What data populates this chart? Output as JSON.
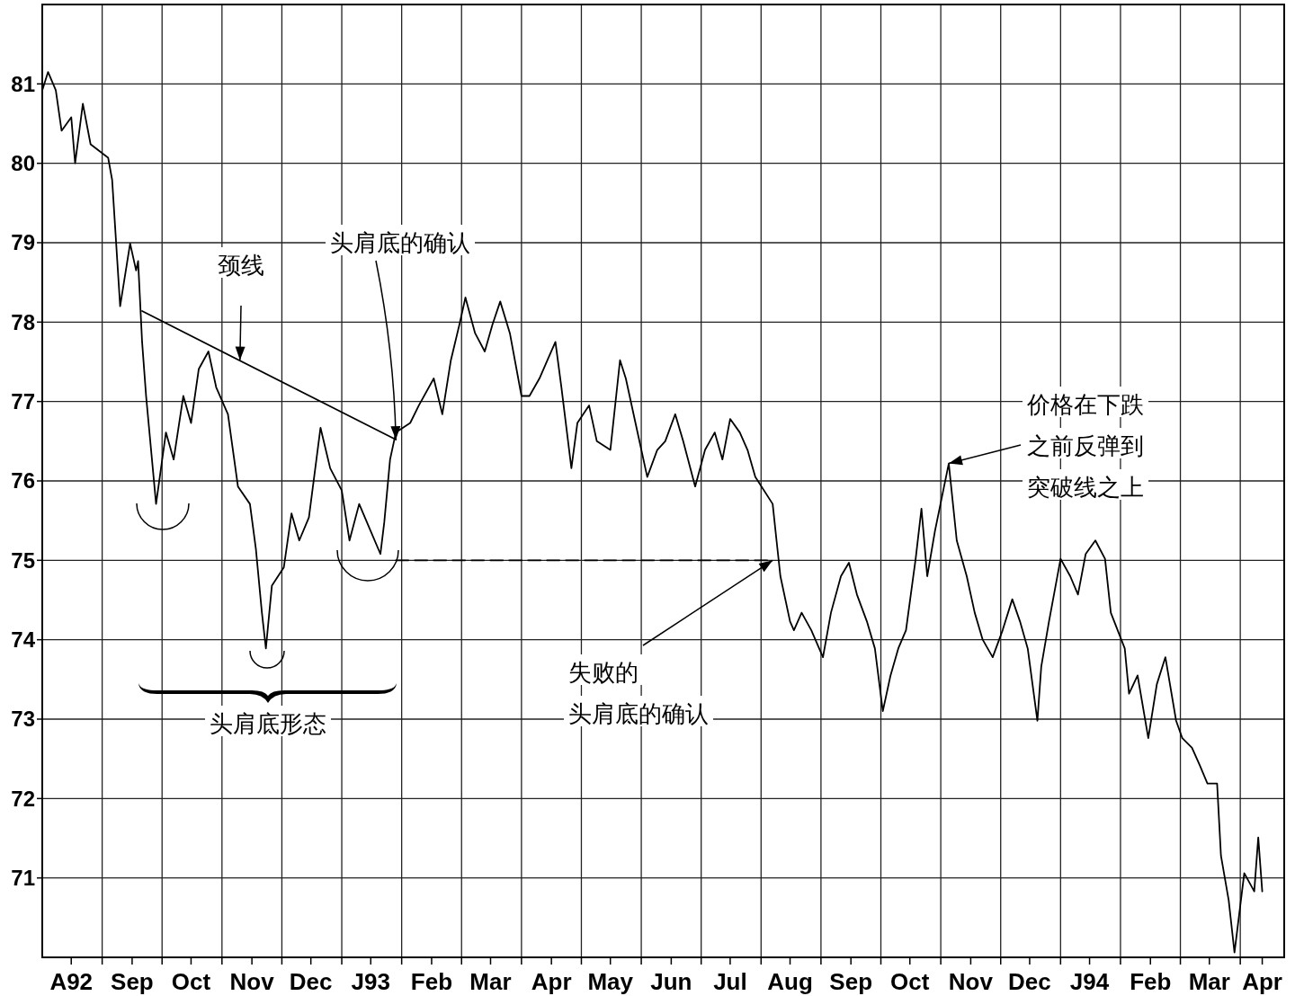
{
  "chart_data": {
    "type": "line",
    "xlim": [
      "1992-08-01",
      "1994-04-23"
    ],
    "ylim": [
      70,
      82
    ],
    "grid": true,
    "yticks": [
      71,
      72,
      73,
      74,
      75,
      76,
      77,
      78,
      79,
      80,
      81
    ],
    "xticks": [
      {
        "value": "1992-08-16",
        "label": "A92"
      },
      {
        "value": "1992-09-01",
        "label": null
      },
      {
        "value": "1992-09-16",
        "label": "Sep"
      },
      {
        "value": "1992-10-01",
        "label": null
      },
      {
        "value": "1992-10-16",
        "label": "Oct"
      },
      {
        "value": "1992-11-01",
        "label": null
      },
      {
        "value": "1992-11-16",
        "label": "Nov"
      },
      {
        "value": "1992-12-01",
        "label": null
      },
      {
        "value": "1992-12-16",
        "label": "Dec"
      },
      {
        "value": "1993-01-01",
        "label": null
      },
      {
        "value": "1993-01-16",
        "label": "J93"
      },
      {
        "value": "1993-02-01",
        "label": null
      },
      {
        "value": "1993-02-15",
        "label": "Feb"
      },
      {
        "value": "1993-03-01",
        "label": null
      },
      {
        "value": "1993-03-16",
        "label": "Mar"
      },
      {
        "value": "1993-04-01",
        "label": null
      },
      {
        "value": "1993-04-16",
        "label": "Apr"
      },
      {
        "value": "1993-05-01",
        "label": null
      },
      {
        "value": "1993-05-16",
        "label": "May"
      },
      {
        "value": "1993-06-01",
        "label": null
      },
      {
        "value": "1993-06-16",
        "label": "Jun"
      },
      {
        "value": "1993-07-01",
        "label": null
      },
      {
        "value": "1993-07-16",
        "label": "Jul"
      },
      {
        "value": "1993-08-01",
        "label": null
      },
      {
        "value": "1993-08-16",
        "label": "Aug"
      },
      {
        "value": "1993-09-01",
        "label": null
      },
      {
        "value": "1993-09-16",
        "label": "Sep"
      },
      {
        "value": "1993-10-01",
        "label": null
      },
      {
        "value": "1993-10-16",
        "label": "Oct"
      },
      {
        "value": "1993-11-01",
        "label": null
      },
      {
        "value": "1993-11-16",
        "label": "Nov"
      },
      {
        "value": "1993-12-01",
        "label": null
      },
      {
        "value": "1993-12-16",
        "label": "Dec"
      },
      {
        "value": "1994-01-01",
        "label": null
      },
      {
        "value": "1994-01-16",
        "label": "J94"
      },
      {
        "value": "1994-02-01",
        "label": null
      },
      {
        "value": "1994-02-15",
        "label": "Feb"
      },
      {
        "value": "1994-03-01",
        "label": null
      },
      {
        "value": "1994-03-16",
        "label": "Mar"
      },
      {
        "value": "1994-04-01",
        "label": null
      },
      {
        "value": "1994-04-12",
        "label": "Apr"
      }
    ],
    "series": [
      {
        "color": "#000000",
        "x": [
          "1992-08-01",
          "1992-08-04",
          "1992-08-08",
          "1992-08-11",
          "1992-08-16",
          "1992-08-18",
          "1992-08-22",
          "1992-08-26",
          "1992-09-04",
          "1992-09-06",
          "1992-09-10",
          "1992-09-15",
          "1992-09-18",
          "1992-09-19",
          "1992-09-21",
          "1992-09-23",
          "1992-09-28",
          "1992-10-03",
          "1992-10-07",
          "1992-10-12",
          "1992-10-16",
          "1992-10-20",
          "1992-10-25",
          "1992-10-29",
          "1992-11-04",
          "1992-11-09",
          "1992-11-15",
          "1992-11-18",
          "1992-11-21",
          "1992-11-23",
          "1992-11-26",
          "1992-12-02",
          "1992-12-06",
          "1992-12-10",
          "1992-12-15",
          "1992-12-21",
          "1992-12-26",
          "1993-01-01",
          "1993-01-05",
          "1993-01-10",
          "1993-01-14",
          "1993-01-21",
          "1993-01-23",
          "1993-01-26",
          "1993-01-29",
          "1993-02-05",
          "1993-02-09",
          "1993-02-16",
          "1993-02-20",
          "1993-02-24",
          "1993-02-28",
          "1993-03-03",
          "1993-03-08",
          "1993-03-13",
          "1993-03-17",
          "1993-03-21",
          "1993-03-26",
          "1993-04-01",
          "1993-04-05",
          "1993-04-10",
          "1993-04-14",
          "1993-04-18",
          "1993-04-21",
          "1993-04-26",
          "1993-04-29",
          "1993-05-05",
          "1993-05-09",
          "1993-05-16",
          "1993-05-21",
          "1993-05-24",
          "1993-05-29",
          "1993-06-04",
          "1993-06-09",
          "1993-06-13",
          "1993-06-18",
          "1993-06-22",
          "1993-06-28",
          "1993-07-03",
          "1993-07-08",
          "1993-07-12",
          "1993-07-16",
          "1993-07-21",
          "1993-07-25",
          "1993-07-29",
          "1993-08-07",
          "1993-08-09",
          "1993-08-11",
          "1993-08-16",
          "1993-08-18",
          "1993-08-22",
          "1993-08-27",
          "1993-09-02",
          "1993-09-06",
          "1993-09-11",
          "1993-09-15",
          "1993-09-19",
          "1993-09-24",
          "1993-09-28",
          "1993-10-02",
          "1993-10-06",
          "1993-10-10",
          "1993-10-14",
          "1993-10-19",
          "1993-10-22",
          "1993-10-25",
          "1993-10-29",
          "1993-11-05",
          "1993-11-09",
          "1993-11-14",
          "1993-11-18",
          "1993-11-22",
          "1993-11-27",
          "1993-12-02",
          "1993-12-07",
          "1993-12-11",
          "1993-12-15",
          "1993-12-20",
          "1993-12-22",
          "1993-12-26",
          "1994-01-01",
          "1994-01-06",
          "1994-01-10",
          "1994-01-14",
          "1994-01-19",
          "1994-01-24",
          "1994-01-27",
          "1994-02-03",
          "1994-02-05",
          "1994-02-09",
          "1994-02-14",
          "1994-02-18",
          "1994-02-22",
          "1994-02-27",
          "1994-03-02",
          "1994-03-07",
          "1994-03-11",
          "1994-03-15",
          "1994-03-20",
          "1994-03-22",
          "1994-03-26",
          "1994-03-29",
          "1994-04-03",
          "1994-04-08",
          "1994-04-10",
          "1994-04-12"
        ],
        "values": [
          80.92,
          81.15,
          80.92,
          80.41,
          80.58,
          80.0,
          80.75,
          80.24,
          80.07,
          79.79,
          78.2,
          78.99,
          78.65,
          78.77,
          77.75,
          77.07,
          75.71,
          76.61,
          76.27,
          77.07,
          76.73,
          77.41,
          77.63,
          77.18,
          76.84,
          75.93,
          75.71,
          75.14,
          74.34,
          73.89,
          74.68,
          74.91,
          75.59,
          75.25,
          75.54,
          76.67,
          76.16,
          75.88,
          75.25,
          75.71,
          75.48,
          75.08,
          75.48,
          76.27,
          76.61,
          76.73,
          76.95,
          77.29,
          76.84,
          77.52,
          77.97,
          78.31,
          77.86,
          77.63,
          77.97,
          78.26,
          77.86,
          77.07,
          77.07,
          77.29,
          77.52,
          77.75,
          77.18,
          76.16,
          76.73,
          76.95,
          76.5,
          76.39,
          77.52,
          77.29,
          76.73,
          76.05,
          76.39,
          76.5,
          76.84,
          76.5,
          75.93,
          76.39,
          76.61,
          76.27,
          76.78,
          76.61,
          76.39,
          76.05,
          75.71,
          75.25,
          74.8,
          74.23,
          74.12,
          74.34,
          74.12,
          73.78,
          74.34,
          74.8,
          74.97,
          74.57,
          74.23,
          73.89,
          73.1,
          73.55,
          73.89,
          74.12,
          75.02,
          75.65,
          74.8,
          75.37,
          76.22,
          75.25,
          74.8,
          74.34,
          74.0,
          73.78,
          74.12,
          74.51,
          74.23,
          73.89,
          72.98,
          73.66,
          74.23,
          75.02,
          74.8,
          74.57,
          75.08,
          75.25,
          75.02,
          74.34,
          73.89,
          73.32,
          73.55,
          72.76,
          73.44,
          73.78,
          72.98,
          72.76,
          72.64,
          72.42,
          72.19,
          72.19,
          71.28,
          70.72,
          70.06,
          71.06,
          70.83,
          71.51,
          70.83
        ]
      },
      {
        "color": "#000000",
        "x": [
          "1992-09-21",
          "1993-01-29"
        ],
        "values": [
          78.14,
          76.52
        ]
      },
      {
        "color": "#000000",
        "line_style": "dashed",
        "x": [
          "1993-01-29",
          "1993-08-07"
        ],
        "values": [
          75,
          75
        ]
      }
    ],
    "annotations": [
      {
        "text": "颈线",
        "x": "1992-11-10",
        "y": 77.52
      },
      {
        "text": "头肩底的确认",
        "x": "1993-01-29",
        "y": 76.52
      },
      "头肩底形态",
      {
        "text": "失败的头肩底的确认",
        "x": "1993-08-07",
        "y": 75
      },
      {
        "text": "价格在下跌之前反弹到突破线之上",
        "x": "1993-11-05",
        "y": 76.22
      }
    ]
  }
}
